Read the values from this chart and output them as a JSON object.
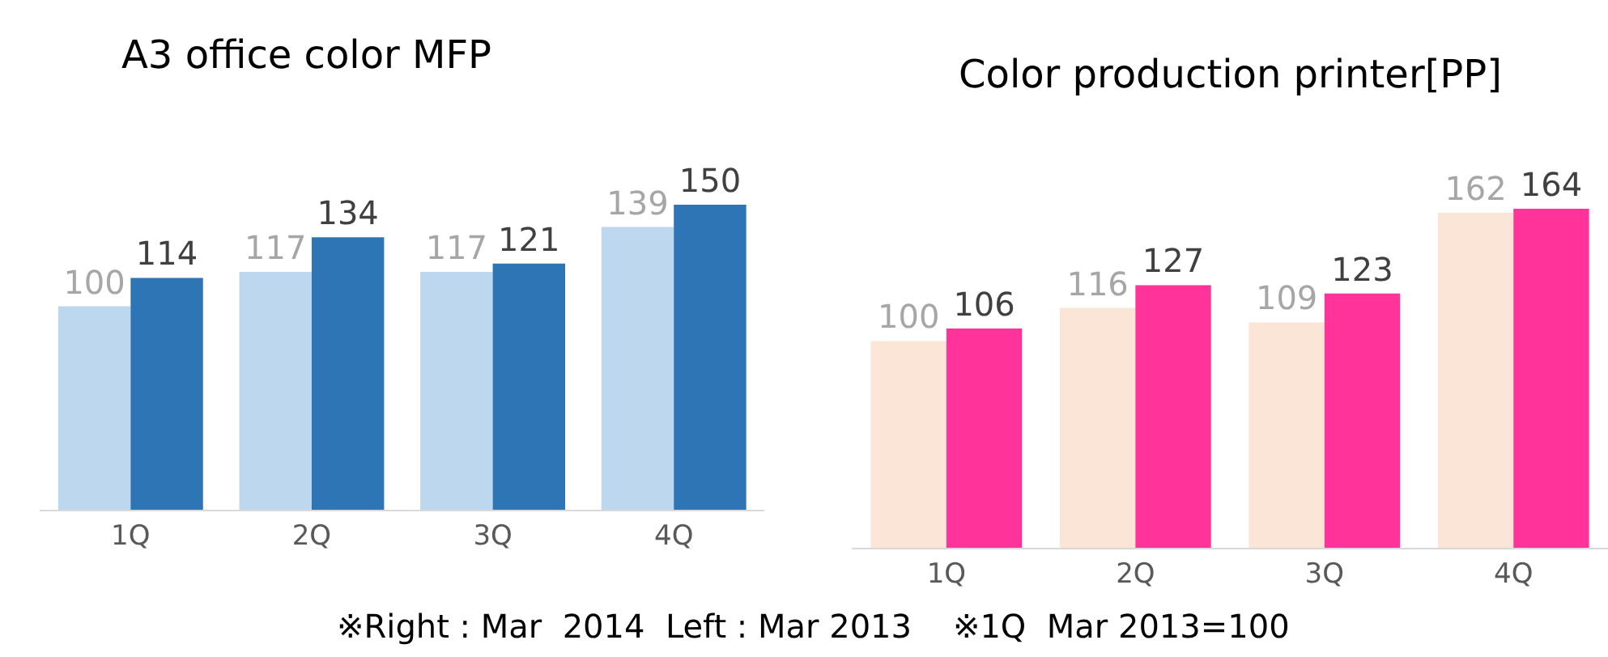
{
  "chart_data": [
    {
      "type": "bar",
      "title": "A3 office color MFP",
      "categories": [
        "1Q",
        "2Q",
        "3Q",
        "4Q"
      ],
      "series": [
        {
          "color": "#bdd7ee",
          "values": [
            100,
            117,
            117,
            139
          ]
        },
        {
          "color": "#2e75b6",
          "values": [
            114,
            134,
            121,
            150
          ]
        }
      ],
      "data_labels": true,
      "tick_labels": "x",
      "annotations": [
        "※Right : Mar  2014  Left : Mar 2013    ※1Q  Mar 2013=100"
      ]
    },
    {
      "type": "bar",
      "title": "Color production printer[PP]",
      "categories": [
        "1Q",
        "2Q",
        "3Q",
        "4Q"
      ],
      "series": [
        {
          "color": "#fbe5d6",
          "values": [
            100,
            116,
            109,
            162
          ]
        },
        {
          "color": "#ff3399",
          "values": [
            106,
            127,
            123,
            164
          ]
        }
      ],
      "data_labels": true,
      "tick_labels": "x"
    }
  ]
}
